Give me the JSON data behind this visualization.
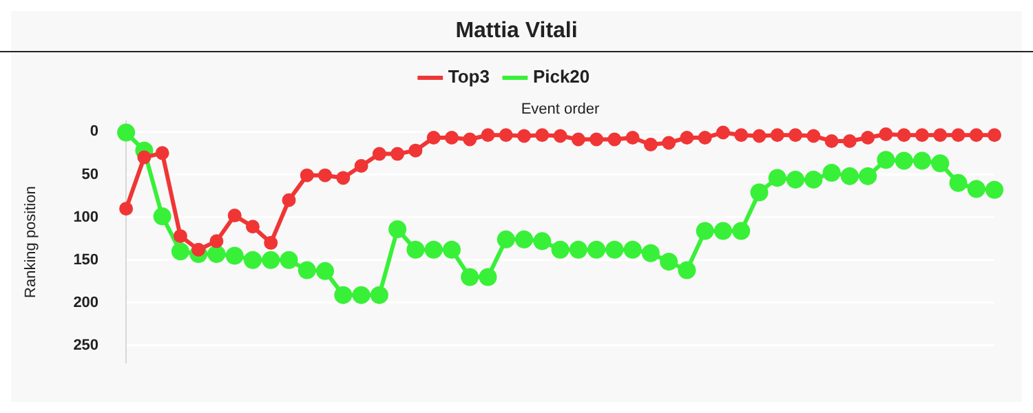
{
  "chart_data": {
    "type": "line",
    "title": "Mattia Vitali",
    "xlabel": "Event order",
    "ylabel": "Ranking position",
    "categories": [
      null,
      null,
      null,
      null,
      null,
      null,
      null,
      null,
      null,
      null,
      null,
      null,
      null,
      null,
      null,
      null,
      null,
      null,
      null,
      null,
      null,
      null,
      null,
      null,
      null,
      null,
      null,
      null,
      null,
      null,
      null,
      null,
      null,
      null,
      null,
      null,
      null,
      null,
      null,
      null,
      null,
      null,
      null,
      null,
      null,
      null,
      null,
      null,
      null
    ],
    "series": [
      {
        "name": "Top3",
        "color": "#f03535",
        "values": [
          90,
          30,
          25,
          122,
          138,
          128,
          98,
          111,
          130,
          80,
          51,
          51,
          54,
          40,
          26,
          26,
          22,
          7,
          7,
          9,
          4,
          4,
          5,
          4,
          5,
          9,
          9,
          9,
          7,
          15,
          13,
          7,
          7,
          1,
          4,
          5,
          4,
          4,
          5,
          11,
          11,
          7,
          3,
          4,
          4,
          4,
          4,
          4,
          4
        ]
      },
      {
        "name": "Pick20",
        "color": "#38f038",
        "values": [
          1,
          22,
          99,
          140,
          143,
          143,
          145,
          150,
          150,
          150,
          162,
          163,
          191,
          191,
          191,
          114,
          138,
          138,
          138,
          170,
          170,
          126,
          126,
          128,
          138,
          138,
          138,
          138,
          138,
          142,
          152,
          162,
          116,
          116,
          116,
          71,
          54,
          56,
          56,
          48,
          52,
          52,
          33,
          34,
          34,
          37,
          60,
          67,
          68
        ]
      }
    ],
    "ylim": [
      270,
      -12
    ],
    "yticks": [
      0,
      50,
      100,
      150,
      200,
      250
    ],
    "grid": "y",
    "legend": "top",
    "marker": "circle",
    "line_style": "solid",
    "tick_labels": "y"
  }
}
